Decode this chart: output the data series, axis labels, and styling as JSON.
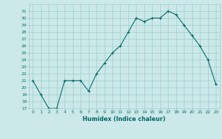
{
  "x": [
    0,
    1,
    2,
    3,
    4,
    5,
    6,
    7,
    8,
    9,
    10,
    11,
    12,
    13,
    14,
    15,
    16,
    17,
    18,
    19,
    20,
    21,
    22,
    23
  ],
  "y": [
    21,
    19,
    17,
    17,
    21,
    21,
    21,
    19.5,
    22,
    23.5,
    25,
    26,
    28,
    30,
    29.5,
    30,
    30,
    31,
    30.5,
    29,
    27.5,
    26,
    24,
    20.5
  ],
  "title": "",
  "xlabel": "Humidex (Indice chaleur)",
  "ylabel": "",
  "ylim": [
    17,
    32
  ],
  "xlim": [
    -0.5,
    23.5
  ],
  "yticks": [
    17,
    18,
    19,
    20,
    21,
    22,
    23,
    24,
    25,
    26,
    27,
    28,
    29,
    30,
    31
  ],
  "xticks": [
    0,
    1,
    2,
    3,
    4,
    5,
    6,
    7,
    8,
    9,
    10,
    11,
    12,
    13,
    14,
    15,
    16,
    17,
    18,
    19,
    20,
    21,
    22,
    23
  ],
  "line_color": "#006666",
  "marker_color": "#006666",
  "bg_color": "#cce8e8",
  "grid_color": "#99cccc",
  "title_color": "#006666"
}
